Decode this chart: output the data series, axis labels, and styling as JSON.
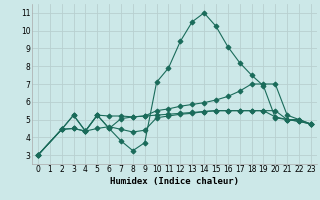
{
  "xlabel": "Humidex (Indice chaleur)",
  "background_color": "#cce8e8",
  "grid_color": "#b8d0d0",
  "line_color": "#1a6b5a",
  "xlim": [
    -0.5,
    23.5
  ],
  "ylim": [
    2.5,
    11.5
  ],
  "xticks": [
    0,
    1,
    2,
    3,
    4,
    5,
    6,
    7,
    8,
    9,
    10,
    11,
    12,
    13,
    14,
    15,
    16,
    17,
    18,
    19,
    20,
    21,
    22,
    23
  ],
  "yticks": [
    3,
    4,
    5,
    6,
    7,
    8,
    9,
    10,
    11
  ],
  "series": [
    {
      "x": [
        0,
        2,
        3,
        4,
        5,
        6,
        7,
        8,
        9,
        10,
        11,
        12,
        13,
        14,
        15,
        16,
        17,
        18,
        19,
        20,
        21,
        22,
        23
      ],
      "y": [
        3.0,
        4.45,
        5.25,
        4.35,
        5.25,
        4.5,
        3.8,
        3.25,
        3.7,
        7.1,
        7.9,
        9.4,
        10.5,
        11.0,
        10.25,
        9.1,
        8.2,
        7.5,
        6.9,
        5.1,
        5.0,
        4.9,
        4.75
      ]
    },
    {
      "x": [
        0,
        2,
        3,
        4,
        5,
        6,
        7,
        8,
        9,
        10,
        11,
        12,
        13,
        14,
        15,
        16,
        17,
        18,
        19,
        20,
        21,
        22,
        23
      ],
      "y": [
        3.0,
        4.45,
        4.5,
        4.35,
        5.25,
        4.5,
        5.05,
        5.15,
        5.2,
        5.5,
        5.6,
        5.75,
        5.85,
        5.95,
        6.1,
        6.3,
        6.6,
        7.0,
        7.0,
        7.0,
        5.25,
        5.0,
        4.75
      ]
    },
    {
      "x": [
        0,
        2,
        3,
        4,
        5,
        6,
        7,
        8,
        9,
        10,
        11,
        12,
        13,
        14,
        15,
        16,
        17,
        18,
        19,
        20,
        21,
        22,
        23
      ],
      "y": [
        3.0,
        4.45,
        4.5,
        4.35,
        4.5,
        4.6,
        4.45,
        4.3,
        4.4,
        5.1,
        5.2,
        5.3,
        5.35,
        5.45,
        5.5,
        5.5,
        5.5,
        5.5,
        5.5,
        5.5,
        5.0,
        5.0,
        4.75
      ]
    },
    {
      "x": [
        0,
        2,
        3,
        4,
        5,
        6,
        7,
        8,
        9,
        10,
        11,
        12,
        13,
        14,
        15,
        16,
        17,
        18,
        19,
        20,
        21,
        22,
        23
      ],
      "y": [
        3.0,
        4.45,
        5.25,
        4.35,
        5.25,
        5.2,
        5.2,
        5.15,
        5.2,
        5.25,
        5.3,
        5.35,
        5.4,
        5.45,
        5.5,
        5.5,
        5.5,
        5.5,
        5.5,
        5.15,
        5.0,
        4.9,
        4.75
      ]
    }
  ],
  "marker": "D",
  "markersize": 2.5,
  "linewidth": 0.8
}
